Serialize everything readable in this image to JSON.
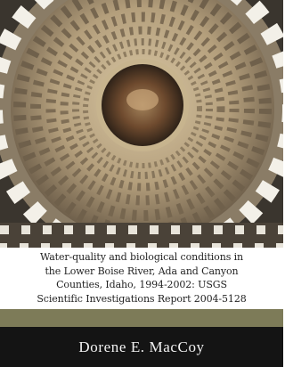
{
  "cover": {
    "title_lines": [
      "Water-quality and biological conditions in",
      "the Lower Boise River, Ada and Canyon",
      "Counties, Idaho, 1994-2002: USGS",
      "Scientific Investigations Report 2004-5128"
    ],
    "author": "Dorene E. MacCoy"
  }
}
